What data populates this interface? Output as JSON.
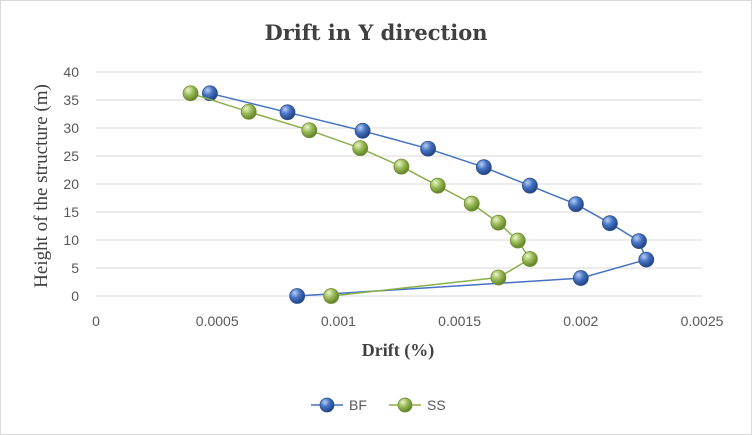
{
  "chart_data": {
    "type": "scatter",
    "title": "Drift in Y direction",
    "xlabel": "Drift (%)",
    "ylabel": "Height of the structure (m)",
    "xlim": [
      0,
      0.0025
    ],
    "ylim": [
      0,
      40
    ],
    "x_ticks": [
      "0",
      "0.0005",
      "0.001",
      "0.0015",
      "0.002",
      "0.0025"
    ],
    "y_ticks": [
      "0",
      "5",
      "10",
      "15",
      "20",
      "25",
      "30",
      "35",
      "40"
    ],
    "grid": "horizontal",
    "legend_position": "bottom",
    "series": [
      {
        "name": "BF",
        "color": "#4472c4",
        "points": [
          [
            0.00083,
            0
          ],
          [
            0.002,
            3.2
          ],
          [
            0.00227,
            6.5
          ],
          [
            0.00224,
            9.8
          ],
          [
            0.00212,
            13
          ],
          [
            0.00198,
            16.4
          ],
          [
            0.00179,
            19.7
          ],
          [
            0.0016,
            23
          ],
          [
            0.00137,
            26.3
          ],
          [
            0.0011,
            29.5
          ],
          [
            0.00079,
            32.8
          ],
          [
            0.00047,
            36.2
          ]
        ]
      },
      {
        "name": "SS",
        "color": "#9bbb59",
        "points": [
          [
            0.00097,
            0
          ],
          [
            0.00166,
            3.3
          ],
          [
            0.00179,
            6.6
          ],
          [
            0.00174,
            9.9
          ],
          [
            0.00166,
            13.1
          ],
          [
            0.00155,
            16.5
          ],
          [
            0.00141,
            19.7
          ],
          [
            0.00126,
            23.1
          ],
          [
            0.00109,
            26.4
          ],
          [
            0.00088,
            29.6
          ],
          [
            0.00063,
            32.9
          ],
          [
            0.00039,
            36.2
          ]
        ]
      }
    ]
  }
}
